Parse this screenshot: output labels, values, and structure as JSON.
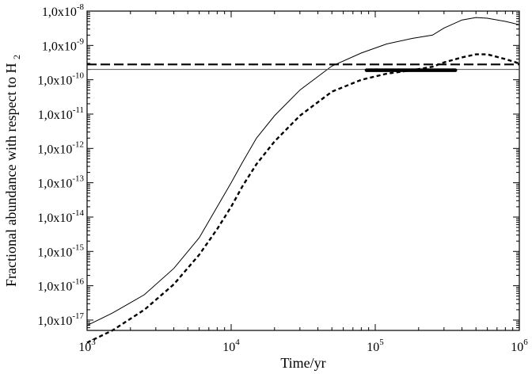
{
  "chart_data": {
    "type": "line",
    "xlabel": "Time/yr",
    "ylabel_main": "Fractional abundance with respect to H",
    "ylabel_sub": "2",
    "xscale": "log",
    "yscale": "log",
    "xlim": [
      1000,
      1000000
    ],
    "ylim": [
      5e-18,
      1e-08
    ],
    "x_ticks": [
      {
        "value": 1000,
        "base": "10",
        "exp": "3"
      },
      {
        "value": 10000,
        "base": "10",
        "exp": "4"
      },
      {
        "value": 100000,
        "base": "10",
        "exp": "5"
      },
      {
        "value": 1000000,
        "base": "10",
        "exp": "6"
      }
    ],
    "y_ticks": [
      {
        "value": 1e-08,
        "base": "1,0x10",
        "exp": "-8"
      },
      {
        "value": 1e-09,
        "base": "1,0x10",
        "exp": "-9"
      },
      {
        "value": 1e-10,
        "base": "1,0x10",
        "exp": "-10"
      },
      {
        "value": 1e-11,
        "base": "1,0x10",
        "exp": "-11"
      },
      {
        "value": 1e-12,
        "base": "1,0x10",
        "exp": "-12"
      },
      {
        "value": 1e-13,
        "base": "1,0x10",
        "exp": "-13"
      },
      {
        "value": 1e-14,
        "base": "1,0x10",
        "exp": "-14"
      },
      {
        "value": 1e-15,
        "base": "1,0x10",
        "exp": "-15"
      },
      {
        "value": 1e-16,
        "base": "1,0x10",
        "exp": "-16"
      },
      {
        "value": 1e-17,
        "base": "1,0x10",
        "exp": "-17"
      }
    ],
    "grid": false,
    "series": [
      {
        "style": "solid-thin",
        "x": [
          1000,
          1500,
          2500,
          4000,
          6000,
          8000,
          10000,
          12000,
          15000,
          20000,
          30000,
          50000,
          80000,
          120000,
          180000,
          250000,
          300000,
          400000,
          500000,
          600000,
          800000,
          1000000
        ],
        "y": [
          7e-18,
          1.6e-17,
          5.5e-17,
          3.2e-16,
          2.5e-15,
          2e-14,
          1e-13,
          4e-13,
          2e-12,
          9e-12,
          5e-11,
          2.5e-10,
          6e-10,
          1.1e-09,
          1.6e-09,
          2e-09,
          3.2e-09,
          5.5e-09,
          6.5e-09,
          6.2e-09,
          5e-09,
          4e-09
        ]
      },
      {
        "style": "dotted-thick",
        "x": [
          1000,
          1500,
          2500,
          4000,
          6000,
          8000,
          10000,
          12000,
          15000,
          20000,
          30000,
          50000,
          80000,
          120000,
          180000,
          250000,
          300000,
          400000,
          500000,
          600000,
          800000,
          950000,
          1000000
        ],
        "y": [
          2.2e-18,
          5e-18,
          2e-17,
          1.1e-16,
          8e-16,
          4.5e-15,
          2e-14,
          8e-14,
          3.5e-13,
          1.6e-12,
          9e-12,
          4.5e-11,
          1e-10,
          1.5e-10,
          1.9e-10,
          2.4e-10,
          3.2e-10,
          4.5e-10,
          5.5e-10,
          5.5e-10,
          4e-10,
          3.2e-10,
          3e-10
        ]
      },
      {
        "style": "dashed-thick",
        "x": [
          1000,
          1000000
        ],
        "y": [
          2.8e-10,
          2.8e-10
        ]
      },
      {
        "style": "solid-thin-gray",
        "x": [
          1000,
          1000000
        ],
        "y": [
          2e-10,
          2e-10
        ]
      },
      {
        "style": "solid-bar",
        "x": [
          87000,
          360000
        ],
        "y": [
          1.9e-10,
          1.9e-10
        ]
      }
    ]
  }
}
